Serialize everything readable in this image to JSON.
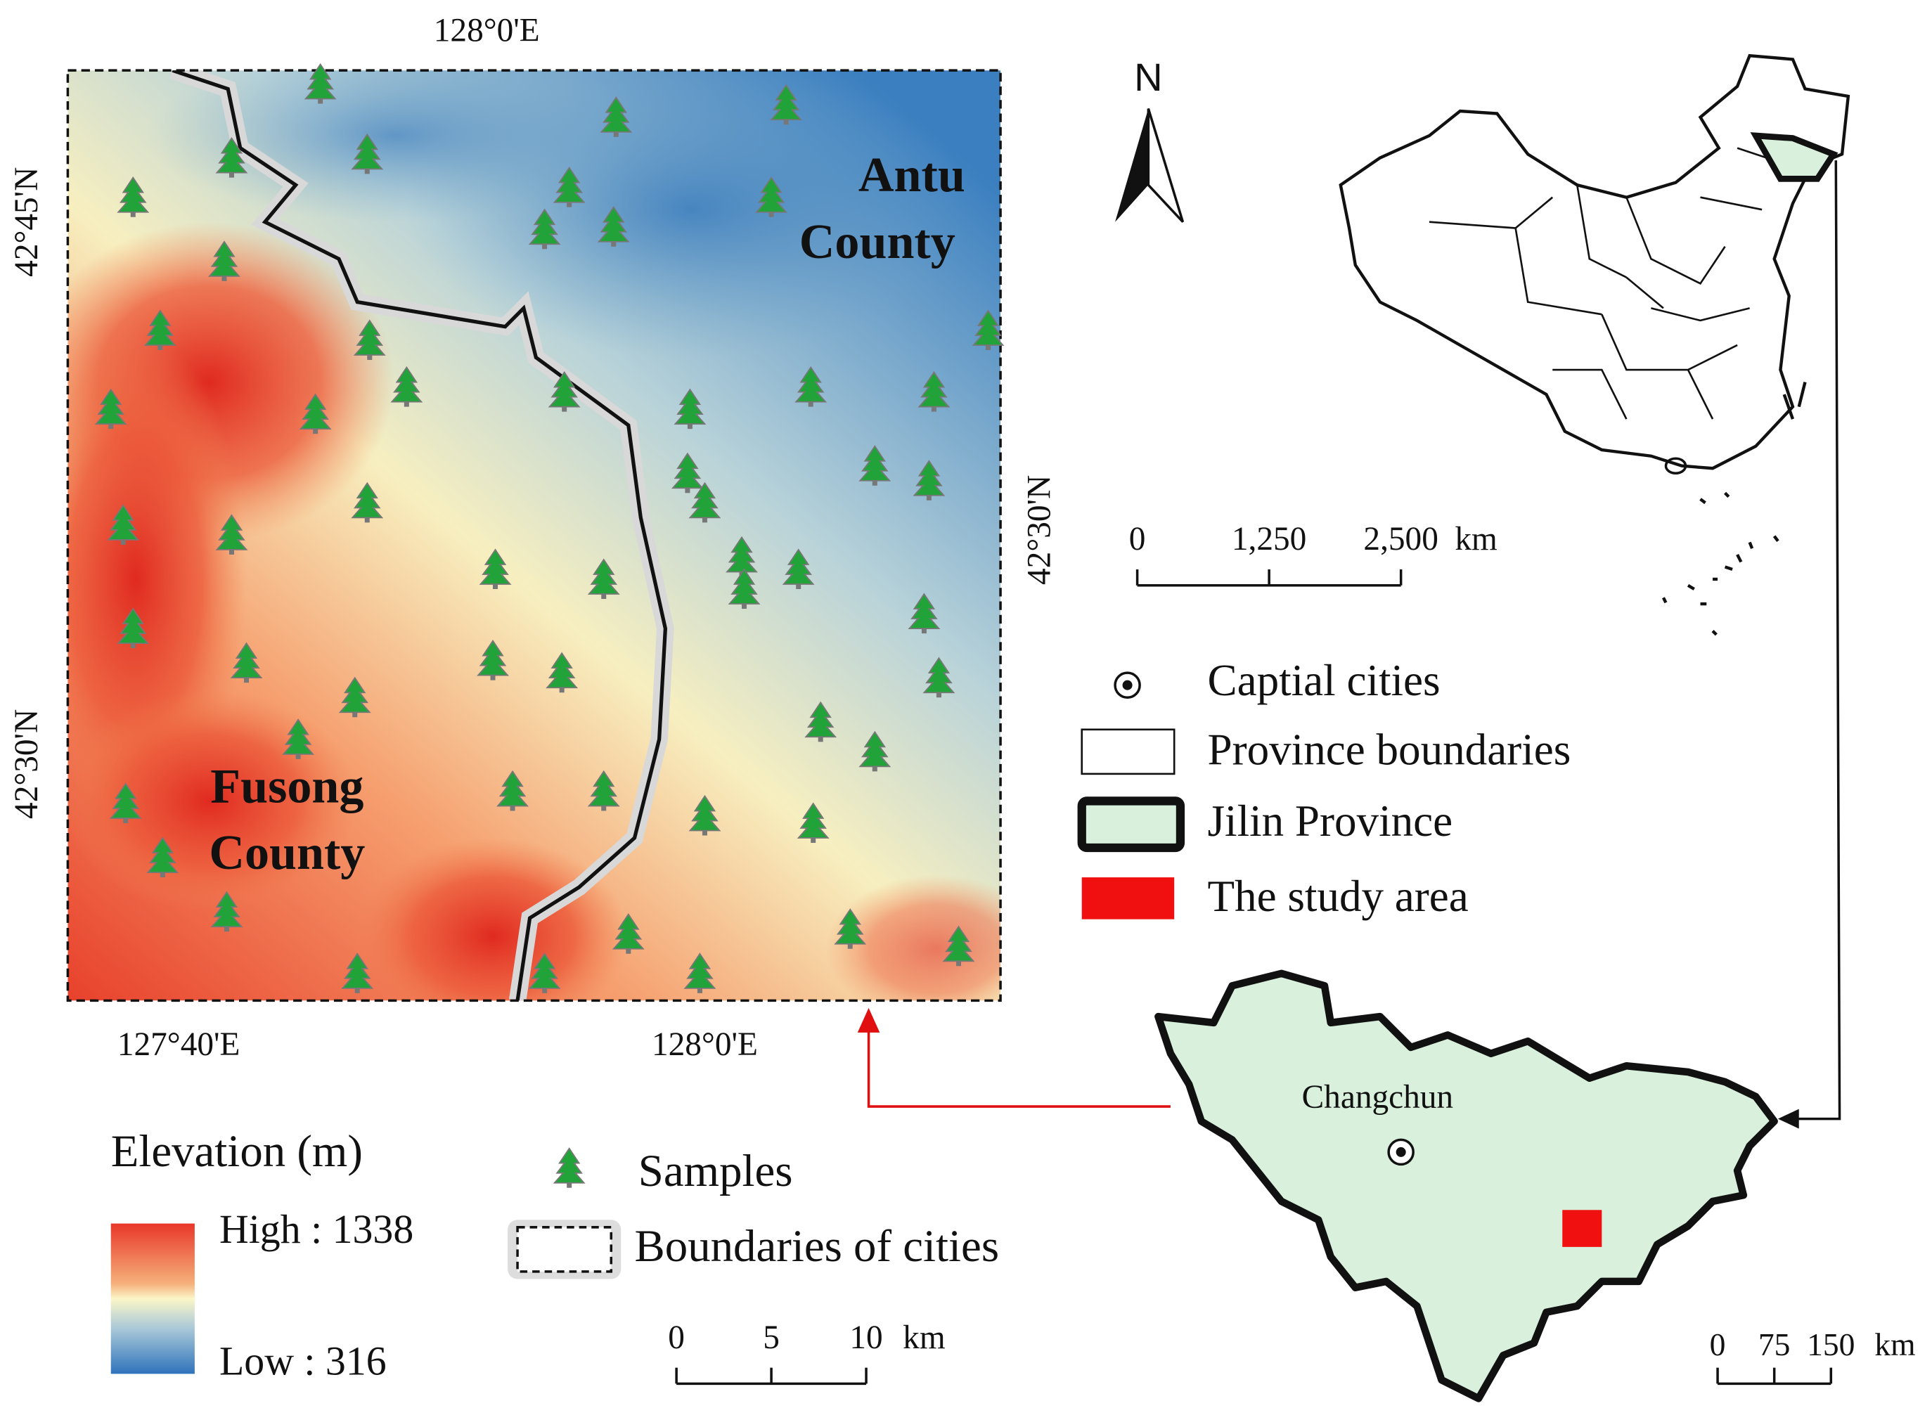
{
  "main_map": {
    "top_label": "128°0'E",
    "left_labels": [
      "42°45'N",
      "42°30'N"
    ],
    "right_label": "42°30'N",
    "bottom_labels": [
      "127°40'E",
      "128°0'E"
    ],
    "antu_county": [
      "Antu",
      "County"
    ],
    "fusong_county": [
      "Fusong",
      "County"
    ]
  },
  "north_label": "N",
  "china_scale": {
    "labels": [
      "0",
      "1,250",
      "2,500"
    ],
    "unit": "km"
  },
  "legend": [
    "Captial cities",
    "Province boundaries",
    "Jilin Province",
    "The study area"
  ],
  "elevation_legend": {
    "title": "Elevation (m)",
    "high": "High : 1338",
    "low": "Low : 316"
  },
  "samples_label": "Samples",
  "boundaries_label": "Boundaries of cities",
  "main_scale": {
    "labels": [
      "0",
      "5",
      "10"
    ],
    "unit": "km"
  },
  "jilin_scale": {
    "labels": [
      "0",
      "75",
      "150"
    ],
    "unit": "km"
  },
  "jilin_city": "Changchun"
}
